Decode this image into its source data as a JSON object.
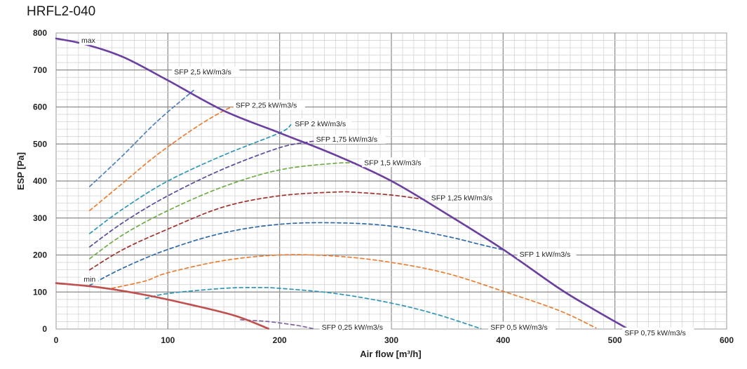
{
  "chart_data": {
    "type": "line",
    "title": "HRFL2-040",
    "xlabel": "Air flow [m³/h]",
    "ylabel": "ESP  [Pa]",
    "xlim": [
      0,
      600
    ],
    "ylim": [
      0,
      800
    ],
    "xticks": [
      "0",
      "100",
      "200",
      "300",
      "400",
      "500",
      "600"
    ],
    "yticks": [
      "0",
      "100",
      "200",
      "300",
      "400",
      "500",
      "600",
      "700",
      "800"
    ],
    "grid": true,
    "series": [
      {
        "name": "max",
        "color": "#6a3fa0",
        "style": "solid",
        "points": [
          [
            0,
            785
          ],
          [
            25,
            770
          ],
          [
            60,
            735
          ],
          [
            100,
            672
          ],
          [
            150,
            590
          ],
          [
            200,
            530
          ],
          [
            250,
            470
          ],
          [
            300,
            400
          ],
          [
            350,
            310
          ],
          [
            400,
            215
          ],
          [
            450,
            110
          ],
          [
            480,
            55
          ],
          [
            510,
            3
          ]
        ]
      },
      {
        "name": "min",
        "color": "#c0504d",
        "style": "solid",
        "points": [
          [
            0,
            124
          ],
          [
            40,
            112
          ],
          [
            80,
            92
          ],
          [
            120,
            66
          ],
          [
            160,
            36
          ],
          [
            190,
            1
          ]
        ]
      },
      {
        "name": "SFP 2,5 kW/m3/s",
        "color": "#4f81bd",
        "style": "dashed",
        "points": [
          [
            30,
            385
          ],
          [
            60,
            470
          ],
          [
            90,
            560
          ],
          [
            123,
            645
          ]
        ]
      },
      {
        "name": "SFP 2,25 kW/m3/s",
        "color": "#ed7d31",
        "style": "dashed",
        "points": [
          [
            30,
            320
          ],
          [
            60,
            395
          ],
          [
            90,
            470
          ],
          [
            125,
            545
          ],
          [
            150,
            590
          ],
          [
            158,
            600
          ]
        ]
      },
      {
        "name": "SFP 2 kW/m3/s",
        "color": "#2e97b8",
        "style": "dashed",
        "points": [
          [
            30,
            258
          ],
          [
            60,
            325
          ],
          [
            100,
            400
          ],
          [
            150,
            470
          ],
          [
            200,
            530
          ],
          [
            210,
            552
          ]
        ]
      },
      {
        "name": "SFP 1,75 kW/m3/s",
        "color": "#5c4a9c",
        "style": "dashed",
        "points": [
          [
            30,
            222
          ],
          [
            60,
            288
          ],
          [
            100,
            360
          ],
          [
            150,
            433
          ],
          [
            200,
            490
          ],
          [
            225,
            505
          ],
          [
            233,
            508
          ]
        ]
      },
      {
        "name": "SFP 1,5 kW/m3/s",
        "color": "#70ad47",
        "style": "dashed",
        "points": [
          [
            30,
            190
          ],
          [
            60,
            255
          ],
          [
            100,
            320
          ],
          [
            150,
            385
          ],
          [
            200,
            430
          ],
          [
            250,
            448
          ],
          [
            270,
            448
          ]
        ]
      },
      {
        "name": "SFP 1,25 kW/m3/s",
        "color": "#a0322d",
        "style": "dashed",
        "points": [
          [
            30,
            160
          ],
          [
            60,
            215
          ],
          [
            100,
            270
          ],
          [
            150,
            330
          ],
          [
            200,
            360
          ],
          [
            250,
            370
          ],
          [
            270,
            369
          ],
          [
            300,
            362
          ],
          [
            330,
            350
          ]
        ]
      },
      {
        "name": "SFP 1 kW/m3/s",
        "color": "#2e6aaa",
        "style": "dashed",
        "points": [
          [
            30,
            118
          ],
          [
            60,
            165
          ],
          [
            100,
            215
          ],
          [
            150,
            260
          ],
          [
            200,
            283
          ],
          [
            250,
            287
          ],
          [
            300,
            278
          ],
          [
            350,
            250
          ],
          [
            380,
            228
          ],
          [
            400,
            214
          ]
        ]
      },
      {
        "name": "SFP 0,75 kW/m3/s",
        "color": "#ed7d31",
        "style": "dashed",
        "points": [
          [
            50,
            110
          ],
          [
            80,
            130
          ],
          [
            100,
            152
          ],
          [
            150,
            185
          ],
          [
            200,
            200
          ],
          [
            250,
            197
          ],
          [
            300,
            180
          ],
          [
            350,
            150
          ],
          [
            400,
            102
          ],
          [
            450,
            50
          ],
          [
            483,
            3
          ]
        ]
      },
      {
        "name": "SFP 0,5 kW/m3/s",
        "color": "#2e97b8",
        "style": "dashed",
        "points": [
          [
            80,
            82
          ],
          [
            100,
            96
          ],
          [
            150,
            110
          ],
          [
            180,
            112
          ],
          [
            200,
            110
          ],
          [
            250,
            96
          ],
          [
            300,
            70
          ],
          [
            340,
            40
          ],
          [
            380,
            1
          ]
        ]
      },
      {
        "name": "SFP 0,25 kW/m3/s",
        "color": "#8064a2",
        "style": "dashed",
        "points": [
          [
            165,
            25
          ],
          [
            190,
            20
          ],
          [
            215,
            10
          ],
          [
            230,
            1
          ]
        ]
      }
    ],
    "annotations": [
      {
        "text": "max",
        "x": 22,
        "y": 775
      },
      {
        "text": "min",
        "x": 24,
        "y": 130
      },
      {
        "text": "SFP 2,5 kW/m3/s",
        "x": 105,
        "y": 690
      },
      {
        "text": "SFP 2,25 kW/m3/s",
        "x": 160,
        "y": 600
      },
      {
        "text": "SFP 2 kW/m3/s",
        "x": 213,
        "y": 550
      },
      {
        "text": "SFP 1,75 kW/m3/s",
        "x": 232,
        "y": 508
      },
      {
        "text": "SFP 1,5 kW/m3/s",
        "x": 275,
        "y": 445
      },
      {
        "text": "SFP 1,25 kW/m3/s",
        "x": 335,
        "y": 350
      },
      {
        "text": "SFP 1 kW/m3/s",
        "x": 414,
        "y": 197
      },
      {
        "text": "SFP 0,25 kW/m3/s",
        "x": 237,
        "y": 0
      },
      {
        "text": "SFP 0,5 kW/m3/s",
        "x": 388,
        "y": 0
      },
      {
        "text": "SFP 0,75 kW/m3/s",
        "x": 508,
        "y": -15
      }
    ]
  }
}
